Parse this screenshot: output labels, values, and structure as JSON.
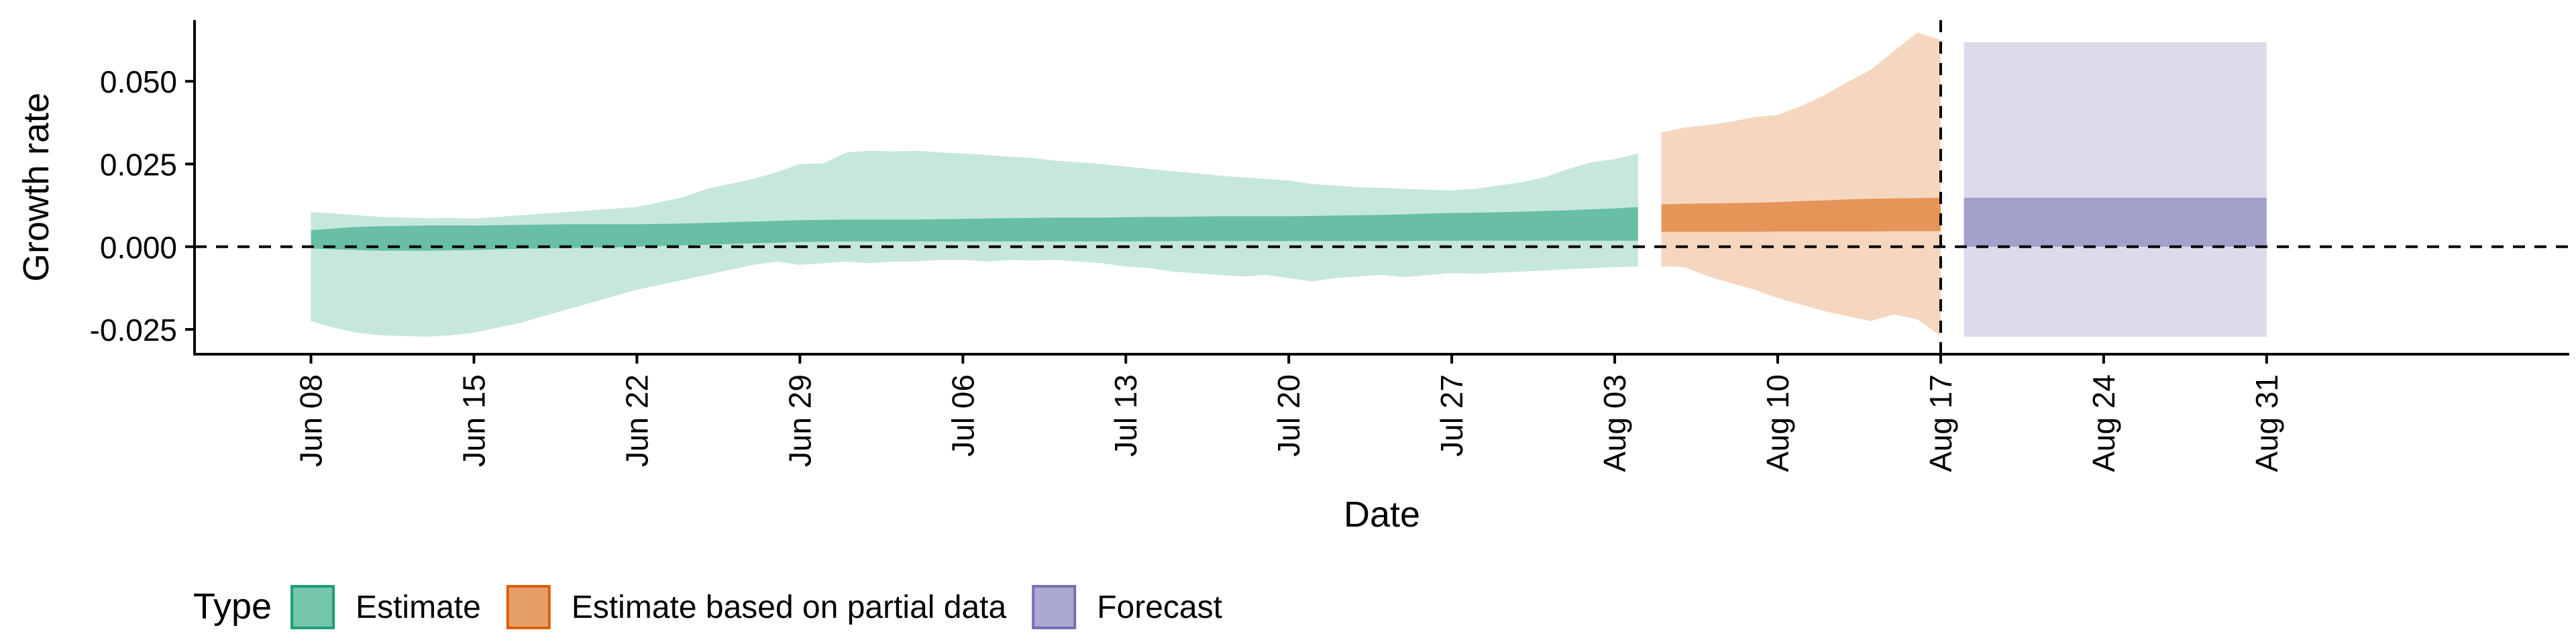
{
  "chart_data": {
    "type": "area",
    "title": "",
    "xlabel": "Date",
    "ylabel": "Growth rate",
    "x_axis": {
      "type": "date",
      "range": [
        "2020-06-03",
        "2020-09-13"
      ],
      "ticks": [
        {
          "date": "2020-06-08",
          "label": "Jun 08"
        },
        {
          "date": "2020-06-15",
          "label": "Jun 15"
        },
        {
          "date": "2020-06-22",
          "label": "Jun 22"
        },
        {
          "date": "2020-06-29",
          "label": "Jun 29"
        },
        {
          "date": "2020-07-06",
          "label": "Jul 06"
        },
        {
          "date": "2020-07-13",
          "label": "Jul 13"
        },
        {
          "date": "2020-07-20",
          "label": "Jul 20"
        },
        {
          "date": "2020-07-27",
          "label": "Jul 27"
        },
        {
          "date": "2020-08-03",
          "label": "Aug 03"
        },
        {
          "date": "2020-08-10",
          "label": "Aug 10"
        },
        {
          "date": "2020-08-17",
          "label": "Aug 17"
        },
        {
          "date": "2020-08-24",
          "label": "Aug 24"
        },
        {
          "date": "2020-08-31",
          "label": "Aug 31"
        }
      ]
    },
    "y_axis": {
      "range": [
        -0.0325,
        0.0685
      ],
      "ticks": [
        {
          "value": -0.025,
          "label": "-0.025"
        },
        {
          "value": 0.0,
          "label": "0.000"
        },
        {
          "value": 0.025,
          "label": "0.025"
        },
        {
          "value": 0.05,
          "label": "0.050"
        }
      ]
    },
    "grid": false,
    "reference_lines": [
      {
        "axis": "y",
        "value": 0,
        "style": "dashed"
      },
      {
        "axis": "x",
        "value": "2020-08-17",
        "style": "dashed"
      }
    ],
    "legend": {
      "title": "Type",
      "position": "bottom-left",
      "entries": [
        {
          "label": "Estimate",
          "color": "#1b9e77"
        },
        {
          "label": "Estimate based on partial data",
          "color": "#d95f02"
        },
        {
          "label": "Forecast",
          "color": "#7570b3"
        }
      ]
    },
    "series": [
      {
        "name": "Estimate",
        "color": "#1b9e77",
        "x": [
          "2020-06-08",
          "2020-06-09",
          "2020-06-10",
          "2020-06-11",
          "2020-06-12",
          "2020-06-13",
          "2020-06-14",
          "2020-06-15",
          "2020-06-16",
          "2020-06-17",
          "2020-06-18",
          "2020-06-19",
          "2020-06-20",
          "2020-06-21",
          "2020-06-22",
          "2020-06-23",
          "2020-06-24",
          "2020-06-25",
          "2020-06-26",
          "2020-06-27",
          "2020-06-28",
          "2020-06-29",
          "2020-06-30",
          "2020-07-01",
          "2020-07-02",
          "2020-07-03",
          "2020-07-04",
          "2020-07-05",
          "2020-07-06",
          "2020-07-07",
          "2020-07-08",
          "2020-07-09",
          "2020-07-10",
          "2020-07-11",
          "2020-07-12",
          "2020-07-13",
          "2020-07-14",
          "2020-07-15",
          "2020-07-16",
          "2020-07-17",
          "2020-07-18",
          "2020-07-19",
          "2020-07-20",
          "2020-07-21",
          "2020-07-22",
          "2020-07-23",
          "2020-07-24",
          "2020-07-25",
          "2020-07-26",
          "2020-07-27",
          "2020-07-28",
          "2020-07-29",
          "2020-07-30",
          "2020-07-31",
          "2020-08-01",
          "2020-08-02",
          "2020-08-03",
          "2020-08-04"
        ],
        "lower_90": [
          -0.0225,
          -0.0245,
          -0.026,
          -0.0268,
          -0.027,
          -0.0272,
          -0.0268,
          -0.026,
          -0.0245,
          -0.023,
          -0.021,
          -0.019,
          -0.017,
          -0.015,
          -0.013,
          -0.0115,
          -0.01,
          -0.0085,
          -0.007,
          -0.0055,
          -0.0045,
          -0.0055,
          -0.005,
          -0.0045,
          -0.005,
          -0.0045,
          -0.0045,
          -0.004,
          -0.004,
          -0.0045,
          -0.004,
          -0.0042,
          -0.004,
          -0.0045,
          -0.005,
          -0.006,
          -0.0065,
          -0.0075,
          -0.008,
          -0.0085,
          -0.009,
          -0.0085,
          -0.0095,
          -0.0105,
          -0.0095,
          -0.009,
          -0.0085,
          -0.0092,
          -0.0085,
          -0.008,
          -0.0082,
          -0.0078,
          -0.0075,
          -0.0072,
          -0.0068,
          -0.0065,
          -0.0062,
          -0.006
        ],
        "upper_90": [
          0.0105,
          0.01,
          0.0095,
          0.009,
          0.0088,
          0.0086,
          0.0087,
          0.0085,
          0.009,
          0.0095,
          0.01,
          0.0105,
          0.011,
          0.0115,
          0.012,
          0.0135,
          0.015,
          0.0175,
          0.019,
          0.0205,
          0.0225,
          0.025,
          0.0252,
          0.0285,
          0.029,
          0.0288,
          0.029,
          0.0285,
          0.0282,
          0.0278,
          0.0272,
          0.0268,
          0.026,
          0.0255,
          0.025,
          0.0242,
          0.0235,
          0.0228,
          0.0222,
          0.0215,
          0.021,
          0.0205,
          0.02,
          0.019,
          0.0185,
          0.018,
          0.0178,
          0.0175,
          0.0172,
          0.017,
          0.0175,
          0.0185,
          0.0195,
          0.021,
          0.0235,
          0.0255,
          0.0265,
          0.0282
        ],
        "lower_50": [
          -0.0005,
          -0.0008,
          -0.001,
          -0.0012,
          -0.0012,
          -0.0012,
          -0.0011,
          -0.001,
          -0.0008,
          -0.0006,
          -0.0005,
          -0.0004,
          -0.0003,
          -0.0002,
          0.0,
          0.0002,
          0.0004,
          0.0006,
          0.0008,
          0.001,
          0.0012,
          0.0014,
          0.0015,
          0.0016,
          0.0016,
          0.0016,
          0.0016,
          0.0016,
          0.0016,
          0.0016,
          0.0016,
          0.0016,
          0.0016,
          0.0016,
          0.0016,
          0.0016,
          0.0016,
          0.0017,
          0.0017,
          0.0017,
          0.0017,
          0.0017,
          0.0017,
          0.0017,
          0.0017,
          0.0017,
          0.0017,
          0.0017,
          0.0018,
          0.0018,
          0.0018,
          0.0018,
          0.0018,
          0.0018,
          0.0018,
          0.0018,
          0.0018,
          0.0018
        ],
        "upper_50": [
          0.005,
          0.0055,
          0.006,
          0.0062,
          0.0063,
          0.0064,
          0.0064,
          0.0064,
          0.0065,
          0.0066,
          0.0067,
          0.0068,
          0.0068,
          0.0068,
          0.0068,
          0.0069,
          0.007,
          0.0072,
          0.0074,
          0.0076,
          0.0078,
          0.008,
          0.0081,
          0.0082,
          0.0082,
          0.0082,
          0.0082,
          0.0083,
          0.0084,
          0.0085,
          0.0086,
          0.0087,
          0.0088,
          0.0088,
          0.0088,
          0.0089,
          0.009,
          0.009,
          0.0091,
          0.0092,
          0.0092,
          0.0092,
          0.0092,
          0.0093,
          0.0094,
          0.0095,
          0.0096,
          0.0098,
          0.01,
          0.0102,
          0.0103,
          0.0104,
          0.0106,
          0.0108,
          0.011,
          0.0113,
          0.0116,
          0.012
        ]
      },
      {
        "name": "Estimate based on partial data",
        "color": "#d95f02",
        "x": [
          "2020-08-05",
          "2020-08-06",
          "2020-08-07",
          "2020-08-08",
          "2020-08-09",
          "2020-08-10",
          "2020-08-11",
          "2020-08-12",
          "2020-08-13",
          "2020-08-14",
          "2020-08-15",
          "2020-08-16",
          "2020-08-17"
        ],
        "lower_90": [
          -0.006,
          -0.0062,
          -0.009,
          -0.011,
          -0.013,
          -0.0155,
          -0.0175,
          -0.0195,
          -0.021,
          -0.0225,
          -0.0205,
          -0.022,
          -0.027
        ],
        "upper_90": [
          0.0345,
          0.036,
          0.0368,
          0.0378,
          0.0392,
          0.0398,
          0.0425,
          0.0458,
          0.0498,
          0.0535,
          0.0592,
          0.0648,
          0.0625
        ],
        "lower_50": [
          0.0045,
          0.0045,
          0.0045,
          0.0045,
          0.0045,
          0.0046,
          0.0046,
          0.0046,
          0.0046,
          0.0046,
          0.0047,
          0.0047,
          0.0047
        ],
        "upper_50": [
          0.0128,
          0.013,
          0.0131,
          0.0132,
          0.0133,
          0.0135,
          0.0138,
          0.014,
          0.0143,
          0.0145,
          0.0146,
          0.0147,
          0.0148
        ]
      },
      {
        "name": "Forecast",
        "color": "#7570b3",
        "x": [
          "2020-08-18",
          "2020-08-31"
        ],
        "lower_90": [
          -0.0272,
          -0.0272
        ],
        "upper_90": [
          0.0618,
          0.0618
        ],
        "lower_50": [
          0.0,
          0.0
        ],
        "upper_50": [
          0.0148,
          0.0148
        ]
      }
    ]
  }
}
